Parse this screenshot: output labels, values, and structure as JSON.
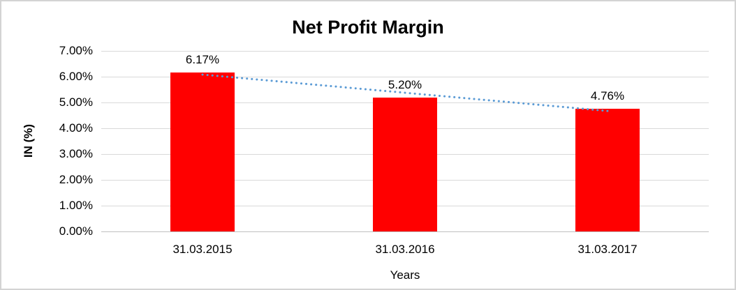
{
  "chart_data": {
    "type": "bar",
    "title": "Net Profit Margin",
    "xlabel": "Years",
    "ylabel": "IN (%)",
    "categories": [
      "31.03.2015",
      "31.03.2016",
      "31.03.2017"
    ],
    "values": [
      6.17,
      5.2,
      4.76
    ],
    "data_labels": [
      "6.17%",
      "5.20%",
      "4.76%"
    ],
    "yticks": {
      "values": [
        0,
        1,
        2,
        3,
        4,
        5,
        6,
        7
      ],
      "labels": [
        "0.00%",
        "1.00%",
        "2.00%",
        "3.00%",
        "4.00%",
        "5.00%",
        "6.00%",
        "7.00%"
      ]
    },
    "ylim": [
      0,
      7
    ],
    "legend": "none",
    "grid": "horizontal",
    "colors": {
      "bar": "#ff0000",
      "trendline": "#5b9bd5",
      "gridline": "#d9d9d9",
      "axis_line": "#bfbfbf",
      "text": "#000000",
      "frame_border": "#d3d3d3"
    },
    "trendline": {
      "type": "linear",
      "style": "dotted"
    }
  }
}
